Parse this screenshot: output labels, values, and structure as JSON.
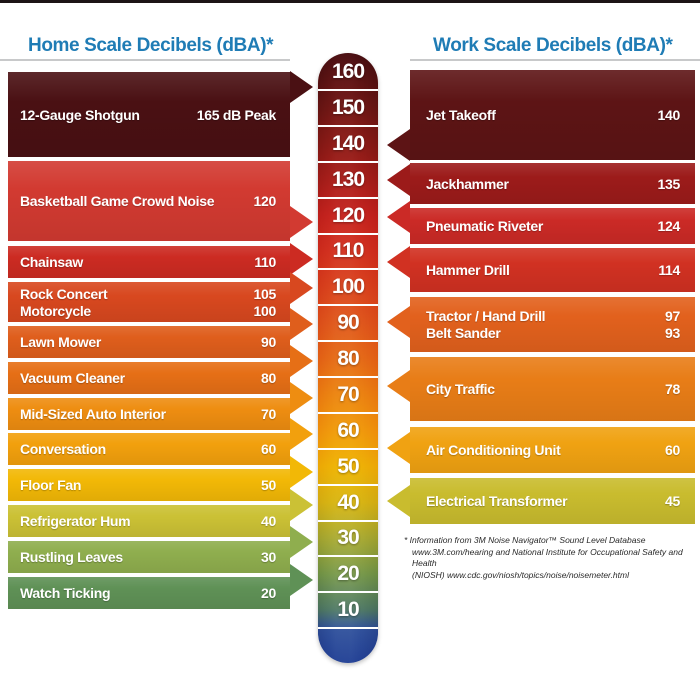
{
  "accent_blue": "#1f7cb5",
  "header": {
    "home_title": "Home Scale Decibels (dBA)*",
    "work_title": "Work Scale Decibels (dBA)*"
  },
  "home_rows": [
    {
      "color": "#4a1013",
      "entries": [
        {
          "label": "12-Gauge Shotgun",
          "value": "165 dB Peak"
        }
      ]
    },
    {
      "color": "#d23a31",
      "entries": [
        {
          "label": "Basketball Game Crowd Noise",
          "value": "120"
        }
      ]
    },
    {
      "color": "#cc2b22",
      "entries": [
        {
          "label": "Chainsaw",
          "value": "110"
        }
      ]
    },
    {
      "color": "#d8481f",
      "entries": [
        {
          "label": "Rock Concert",
          "value": "105"
        },
        {
          "label": "Motorcycle",
          "value": "100"
        }
      ]
    },
    {
      "color": "#df5e1c",
      "entries": [
        {
          "label": "Lawn Mower",
          "value": "90"
        }
      ]
    },
    {
      "color": "#e66f16",
      "entries": [
        {
          "label": "Vacuum Cleaner",
          "value": "80"
        }
      ]
    },
    {
      "color": "#ee8d11",
      "entries": [
        {
          "label": "Mid-Sized Auto Interior",
          "value": "70"
        }
      ]
    },
    {
      "color": "#f2a00d",
      "entries": [
        {
          "label": "Conversation",
          "value": "60"
        }
      ]
    },
    {
      "color": "#f2b806",
      "entries": [
        {
          "label": "Floor Fan",
          "value": "50"
        }
      ]
    },
    {
      "color": "#cbc135",
      "entries": [
        {
          "label": "Refrigerator Hum",
          "value": "40"
        }
      ]
    },
    {
      "color": "#8fae4e",
      "entries": [
        {
          "label": "Rustling Leaves",
          "value": "30"
        }
      ]
    },
    {
      "color": "#5f9156",
      "entries": [
        {
          "label": "Watch Ticking",
          "value": "20"
        }
      ]
    }
  ],
  "work_rows": [
    {
      "color": "#5d1415",
      "entries": [
        {
          "label": "Jet Takeoff",
          "value": "140"
        }
      ]
    },
    {
      "color": "#9c1b1a",
      "entries": [
        {
          "label": "Jackhammer",
          "value": "135"
        }
      ]
    },
    {
      "color": "#cb2a26",
      "entries": [
        {
          "label": "Pneumatic Riveter",
          "value": "124"
        }
      ]
    },
    {
      "color": "#d13122",
      "entries": [
        {
          "label": "Hammer Drill",
          "value": "114"
        }
      ]
    },
    {
      "color": "#e2611d",
      "entries": [
        {
          "label": "Tractor / Hand Drill",
          "value": "97"
        },
        {
          "label": "Belt Sander",
          "value": "93"
        }
      ]
    },
    {
      "color": "#e87d17",
      "entries": [
        {
          "label": "City Traffic",
          "value": "78"
        }
      ]
    },
    {
      "color": "#f0a212",
      "entries": [
        {
          "label": "Air Conditioning Unit",
          "value": "60"
        }
      ]
    },
    {
      "color": "#c9bc2e",
      "entries": [
        {
          "label": "Electrical Transformer",
          "value": "45"
        }
      ]
    }
  ],
  "scale": {
    "ticks": [
      "160",
      "150",
      "140",
      "130",
      "120",
      "110",
      "100",
      "90",
      "80",
      "70",
      "60",
      "50",
      "40",
      "30",
      "20",
      "10"
    ],
    "tick_colors": [
      "#571213",
      "#6f1715",
      "#8b1b17",
      "#a81f1b",
      "#c5241f",
      "#d23120",
      "#d9431e",
      "#df571d",
      "#e56a18",
      "#eb8312",
      "#f0990d",
      "#eeb106",
      "#d7b414",
      "#a9aa34",
      "#78994c",
      "#517a68"
    ],
    "cap_color": "#440d10",
    "bulb_top_color": "#31519b",
    "bulb_bottom_color": "#223f93"
  },
  "footnote": {
    "lines": [
      "* Information from 3M Noise Navigator™ Sound Level Database",
      "www.3M.com/hearing and National Institute for Occupational Safety and Health",
      "(NIOSH)  www.cdc.gov/niosh/topics/noise/noisemeter.html"
    ]
  },
  "chart_data": {
    "type": "bar",
    "title": "Home Scale vs Work Scale Decibels (dBA)",
    "unit": "dBA",
    "axis": {
      "min": 10,
      "max": 160,
      "step": 10,
      "ticks": [
        160,
        150,
        140,
        130,
        120,
        110,
        100,
        90,
        80,
        70,
        60,
        50,
        40,
        30,
        20,
        10
      ]
    },
    "series": [
      {
        "name": "Home Scale Decibels (dBA)",
        "points": [
          {
            "label": "12-Gauge Shotgun",
            "value": 165,
            "display": "165 dB Peak"
          },
          {
            "label": "Basketball Game Crowd Noise",
            "value": 120
          },
          {
            "label": "Chainsaw",
            "value": 110
          },
          {
            "label": "Rock Concert",
            "value": 105
          },
          {
            "label": "Motorcycle",
            "value": 100
          },
          {
            "label": "Lawn Mower",
            "value": 90
          },
          {
            "label": "Vacuum Cleaner",
            "value": 80
          },
          {
            "label": "Mid-Sized Auto Interior",
            "value": 70
          },
          {
            "label": "Conversation",
            "value": 60
          },
          {
            "label": "Floor Fan",
            "value": 50
          },
          {
            "label": "Refrigerator Hum",
            "value": 40
          },
          {
            "label": "Rustling Leaves",
            "value": 30
          },
          {
            "label": "Watch Ticking",
            "value": 20
          }
        ]
      },
      {
        "name": "Work Scale Decibels (dBA)",
        "points": [
          {
            "label": "Jet Takeoff",
            "value": 140
          },
          {
            "label": "Jackhammer",
            "value": 135
          },
          {
            "label": "Pneumatic Riveter",
            "value": 124
          },
          {
            "label": "Hammer Drill",
            "value": 114
          },
          {
            "label": "Tractor / Hand Drill",
            "value": 97
          },
          {
            "label": "Belt Sander",
            "value": 93
          },
          {
            "label": "City Traffic",
            "value": 78
          },
          {
            "label": "Air Conditioning Unit",
            "value": 60
          },
          {
            "label": "Electrical Transformer",
            "value": 45
          }
        ]
      }
    ],
    "footnote": "* Information from 3M Noise Navigator™ Sound Level Database www.3M.com/hearing and National Institute for Occupational Safety and Health (NIOSH) www.cdc.gov/niosh/topics/noise/noisemeter.html"
  }
}
